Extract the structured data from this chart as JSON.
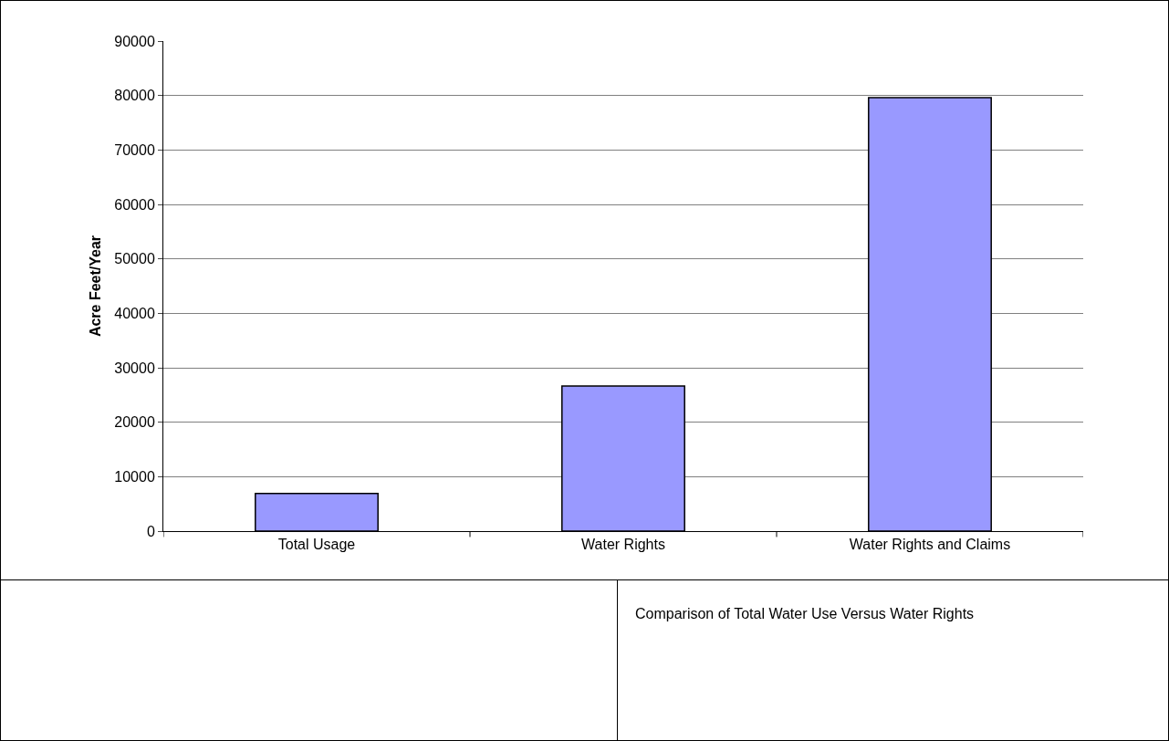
{
  "chart_data": {
    "type": "bar",
    "ylabel": "Acre Feet/Year",
    "categories": [
      "Total Usage",
      "Water Rights",
      "Water Rights and Claims"
    ],
    "values": [
      6900,
      26650,
      79600
    ],
    "color": "#9999ff",
    "ylim": [
      0,
      90000
    ],
    "yticks": [
      0,
      10000,
      20000,
      30000,
      40000,
      50000,
      60000,
      70000,
      80000,
      90000
    ],
    "grid": "y",
    "annotations": [
      "Comparison of Total Water Use Versus Water Rights"
    ]
  }
}
